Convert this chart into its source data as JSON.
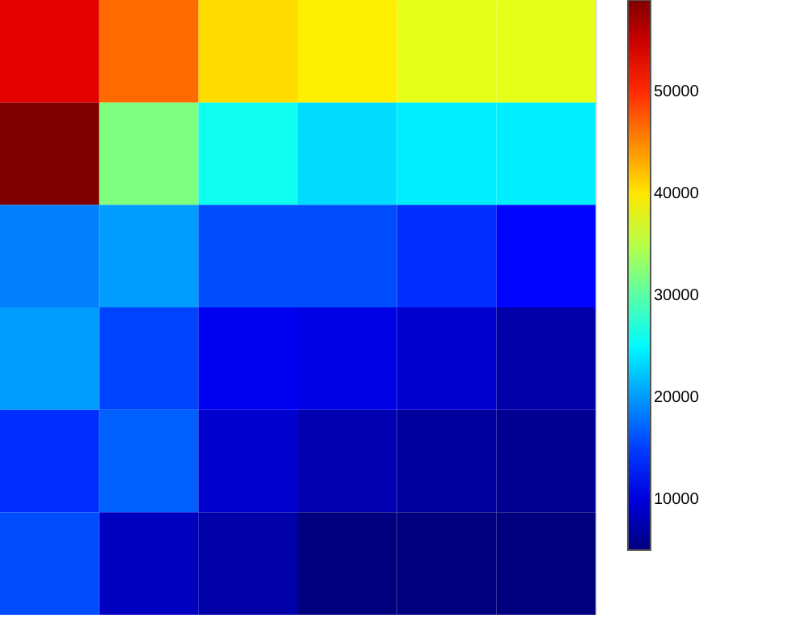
{
  "chart_data": {
    "type": "heatmap",
    "categories": [
      null,
      null,
      null,
      null,
      null,
      null
    ],
    "y_categories": [
      null,
      null,
      null,
      null,
      null,
      null
    ],
    "cells": [
      [
        53600,
        46600,
        40600,
        39600,
        37400,
        37400
      ],
      [
        59000,
        32000,
        26000,
        23400,
        24400,
        24400
      ],
      [
        18500,
        20100,
        15800,
        15800,
        14200,
        12000
      ],
      [
        20100,
        15300,
        11000,
        10400,
        9300,
        7200
      ],
      [
        14200,
        16900,
        9300,
        7700,
        6600,
        6100
      ],
      [
        15800,
        8500,
        7200,
        5000,
        5000,
        5000
      ]
    ],
    "clim": [
      5000,
      59000
    ],
    "cticks": [
      10000,
      20000,
      30000,
      40000,
      50000
    ]
  }
}
